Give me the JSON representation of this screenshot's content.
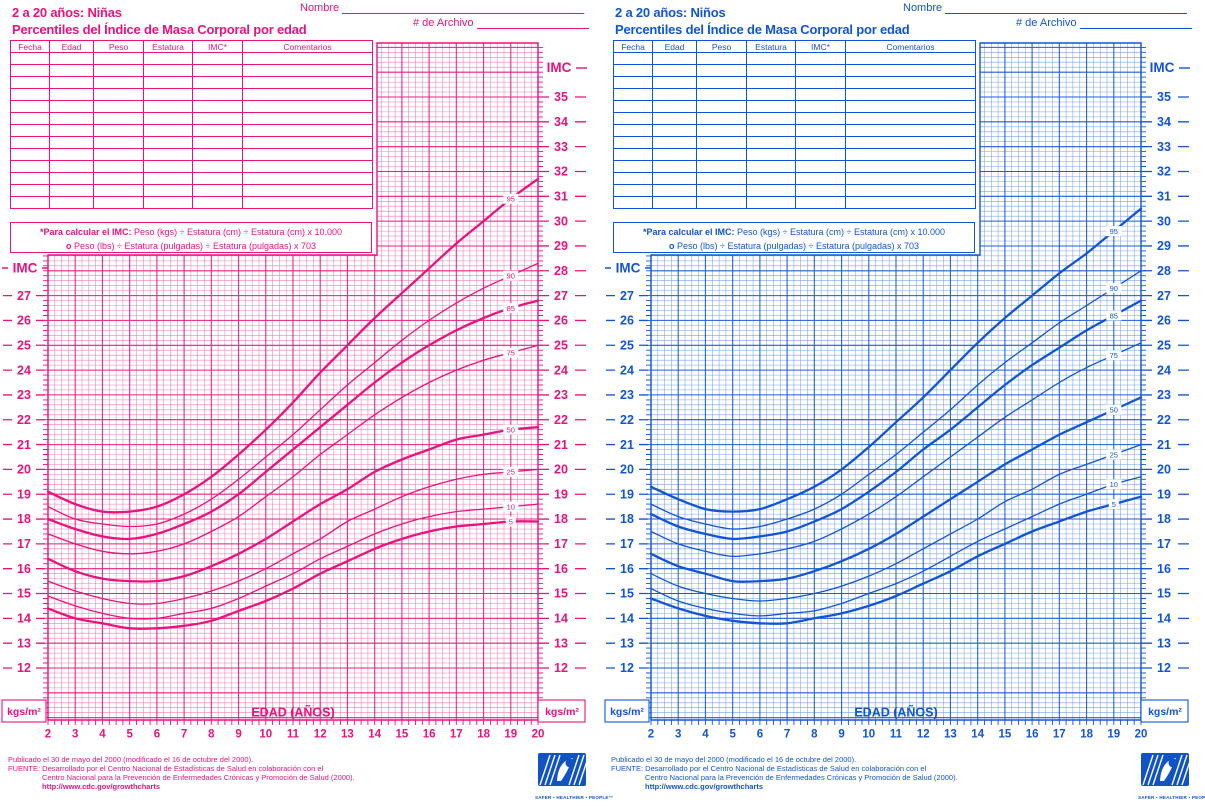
{
  "shared": {
    "name_label": "Nombre",
    "file_label": "# de Archivo",
    "table_headers": [
      "Fecha",
      "Edad",
      "Peso",
      "Estatura",
      "IMC*",
      "Comentarios"
    ],
    "table_empty_rows": 13,
    "formula_bold1": "*Para calcular el IMC:",
    "formula_line1": "Peso (kgs) ÷ Estatura (cm) ÷ Estatura (cm) x 10.000",
    "formula_bold2": "o",
    "formula_line2": "Peso (lbs) ÷ Estatura (pulgadas) ÷ Estatura (pulgadas) x 703",
    "footer_line1": "Publicado el 30 de mayo del 2000 (modificado el 16 de octubre del 2000).",
    "footer_line2": "FUENTE: Desarrollado por el Centro Nacional de Estadísticas de Salud en colaboración con el",
    "footer_line3": "Centro Nacional para la Prevención de Enfermedades Crónicas y Promoción de Salud (2000).",
    "footer_line4": "http://www.cdc.gov/growthcharts",
    "logo_tagline": "SAFER • HEALTHIER • PEOPLE™"
  },
  "chart_data": [
    {
      "type": "line",
      "panel": "ninas",
      "color": "#e8137d",
      "title": "2 a 20 años: Niñas",
      "subtitle": "Percentiles del Índice de Masa Corporal por edad",
      "xlabel": "EDAD (AÑOS)",
      "ylabel": "IMC",
      "y_unit": "kgs/m²",
      "xlim": [
        2,
        20
      ],
      "ylim": [
        10,
        37
      ],
      "grid": true,
      "x_ticks": [
        2,
        3,
        4,
        5,
        6,
        7,
        8,
        9,
        10,
        11,
        12,
        13,
        14,
        15,
        16,
        17,
        18,
        19,
        20
      ],
      "y_ticks_right": [
        12,
        13,
        14,
        15,
        16,
        17,
        18,
        19,
        20,
        21,
        22,
        23,
        24,
        25,
        26,
        27,
        28,
        29,
        30,
        31,
        32,
        33,
        34,
        35
      ],
      "y_ticks_left": [
        12,
        13,
        14,
        15,
        16,
        17,
        18,
        19,
        20,
        21,
        22,
        23,
        24,
        25,
        26,
        27
      ],
      "x": [
        2,
        3,
        4,
        5,
        6,
        7,
        8,
        9,
        10,
        11,
        12,
        13,
        14,
        15,
        16,
        17,
        18,
        19,
        20
      ],
      "series": [
        {
          "name": "95",
          "values": [
            19.1,
            18.6,
            18.3,
            18.3,
            18.5,
            19.0,
            19.7,
            20.6,
            21.6,
            22.7,
            23.9,
            25.0,
            26.1,
            27.1,
            28.1,
            29.1,
            30.0,
            30.9,
            31.7
          ]
        },
        {
          "name": "90",
          "values": [
            18.5,
            18.0,
            17.8,
            17.7,
            17.8,
            18.2,
            18.8,
            19.6,
            20.5,
            21.4,
            22.4,
            23.4,
            24.3,
            25.2,
            26.0,
            26.7,
            27.3,
            27.8,
            28.3
          ]
        },
        {
          "name": "85",
          "values": [
            18.0,
            17.6,
            17.3,
            17.2,
            17.4,
            17.8,
            18.3,
            19.0,
            19.9,
            20.8,
            21.7,
            22.6,
            23.5,
            24.3,
            25.0,
            25.6,
            26.1,
            26.5,
            26.8
          ]
        },
        {
          "name": "75",
          "values": [
            17.4,
            17.0,
            16.7,
            16.6,
            16.7,
            17.0,
            17.5,
            18.1,
            18.9,
            19.7,
            20.6,
            21.4,
            22.2,
            22.9,
            23.5,
            24.0,
            24.4,
            24.7,
            25.0
          ]
        },
        {
          "name": "50",
          "values": [
            16.4,
            15.9,
            15.6,
            15.5,
            15.5,
            15.7,
            16.1,
            16.6,
            17.2,
            17.9,
            18.6,
            19.2,
            19.9,
            20.4,
            20.8,
            21.2,
            21.4,
            21.6,
            21.7
          ]
        },
        {
          "name": "25",
          "values": [
            15.5,
            15.1,
            14.8,
            14.6,
            14.6,
            14.8,
            15.1,
            15.5,
            16.0,
            16.6,
            17.2,
            17.9,
            18.4,
            18.9,
            19.3,
            19.6,
            19.8,
            19.9,
            20.0
          ]
        },
        {
          "name": "10",
          "values": [
            14.9,
            14.5,
            14.2,
            14.0,
            14.0,
            14.2,
            14.4,
            14.8,
            15.3,
            15.8,
            16.4,
            16.9,
            17.4,
            17.8,
            18.1,
            18.3,
            18.4,
            18.5,
            18.6
          ]
        },
        {
          "name": "5",
          "values": [
            14.4,
            14.0,
            13.8,
            13.6,
            13.6,
            13.7,
            13.9,
            14.3,
            14.7,
            15.2,
            15.8,
            16.3,
            16.8,
            17.2,
            17.5,
            17.7,
            17.8,
            17.9,
            17.9
          ]
        }
      ]
    },
    {
      "type": "line",
      "panel": "ninos",
      "color": "#1155d4",
      "title": "2 a 20 años: Niños",
      "subtitle": "Percentiles del Índice de Masa Corporal por edad",
      "xlabel": "EDAD (AÑOS)",
      "ylabel": "IMC",
      "y_unit": "kgs/m²",
      "xlim": [
        2,
        20
      ],
      "ylim": [
        10,
        37
      ],
      "grid": true,
      "x_ticks": [
        2,
        3,
        4,
        5,
        6,
        7,
        8,
        9,
        10,
        11,
        12,
        13,
        14,
        15,
        16,
        17,
        18,
        19,
        20
      ],
      "y_ticks_right": [
        12,
        13,
        14,
        15,
        16,
        17,
        18,
        19,
        20,
        21,
        22,
        23,
        24,
        25,
        26,
        27,
        28,
        29,
        30,
        31,
        32,
        33,
        34,
        35
      ],
      "y_ticks_left": [
        12,
        13,
        14,
        15,
        16,
        17,
        18,
        19,
        20,
        21,
        22,
        23,
        24,
        25,
        26,
        27
      ],
      "x": [
        2,
        3,
        4,
        5,
        6,
        7,
        8,
        9,
        10,
        11,
        12,
        13,
        14,
        15,
        16,
        17,
        18,
        19,
        20
      ],
      "series": [
        {
          "name": "95",
          "values": [
            19.3,
            18.8,
            18.4,
            18.3,
            18.4,
            18.8,
            19.3,
            20.0,
            20.9,
            21.9,
            22.9,
            24.0,
            25.1,
            26.1,
            27.0,
            27.9,
            28.7,
            29.6,
            30.5
          ]
        },
        {
          "name": "90",
          "values": [
            18.6,
            18.1,
            17.8,
            17.6,
            17.7,
            18.0,
            18.4,
            19.0,
            19.8,
            20.6,
            21.5,
            22.4,
            23.4,
            24.3,
            25.1,
            25.9,
            26.6,
            27.3,
            28.0
          ]
        },
        {
          "name": "85",
          "values": [
            18.2,
            17.7,
            17.4,
            17.2,
            17.3,
            17.5,
            17.9,
            18.4,
            19.1,
            19.9,
            20.8,
            21.6,
            22.5,
            23.4,
            24.2,
            24.9,
            25.6,
            26.2,
            26.8
          ]
        },
        {
          "name": "75",
          "values": [
            17.5,
            17.0,
            16.7,
            16.5,
            16.6,
            16.8,
            17.1,
            17.6,
            18.2,
            18.9,
            19.7,
            20.5,
            21.3,
            22.1,
            22.8,
            23.5,
            24.1,
            24.6,
            25.1
          ]
        },
        {
          "name": "50",
          "values": [
            16.6,
            16.1,
            15.8,
            15.5,
            15.5,
            15.6,
            15.9,
            16.3,
            16.8,
            17.4,
            18.1,
            18.8,
            19.5,
            20.2,
            20.8,
            21.4,
            21.9,
            22.4,
            22.9
          ]
        },
        {
          "name": "25",
          "values": [
            15.8,
            15.3,
            15.0,
            14.8,
            14.7,
            14.8,
            15.0,
            15.3,
            15.7,
            16.2,
            16.8,
            17.4,
            18.0,
            18.7,
            19.2,
            19.8,
            20.2,
            20.6,
            21.0
          ]
        },
        {
          "name": "10",
          "values": [
            15.2,
            14.7,
            14.4,
            14.2,
            14.1,
            14.2,
            14.3,
            14.6,
            15.0,
            15.4,
            15.9,
            16.5,
            17.1,
            17.6,
            18.1,
            18.6,
            19.0,
            19.4,
            19.7
          ]
        },
        {
          "name": "5",
          "values": [
            14.8,
            14.4,
            14.1,
            13.9,
            13.8,
            13.8,
            14.0,
            14.2,
            14.5,
            14.9,
            15.4,
            15.9,
            16.5,
            17.0,
            17.5,
            17.9,
            18.3,
            18.6,
            18.9
          ]
        }
      ]
    }
  ]
}
